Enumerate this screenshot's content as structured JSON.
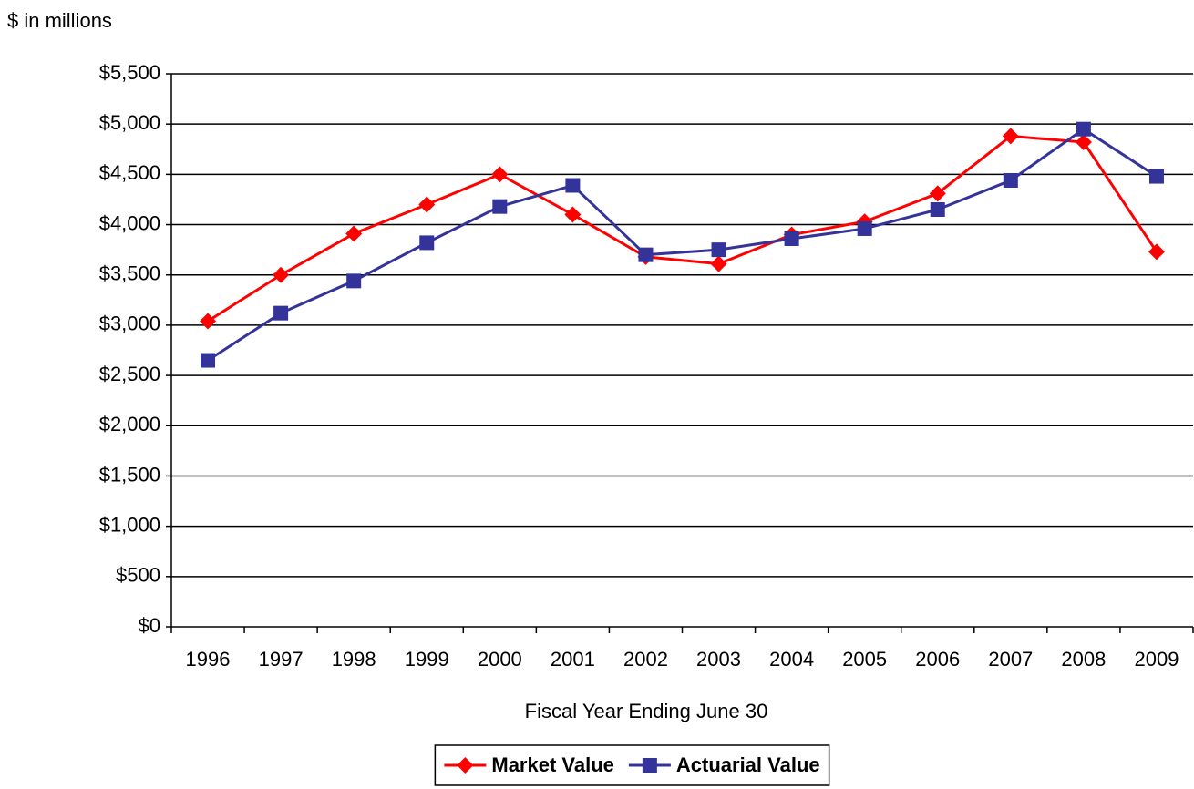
{
  "chart_data": {
    "type": "line",
    "y_label": "$ in millions",
    "x_label": "Fiscal Year Ending June 30",
    "categories": [
      "1996",
      "1997",
      "1998",
      "1999",
      "2000",
      "2001",
      "2002",
      "2003",
      "2004",
      "2005",
      "2006",
      "2007",
      "2008",
      "2009"
    ],
    "series": [
      {
        "name": "Market Value",
        "color": "#ff0000",
        "marker": "diamond",
        "values": [
          3040,
          3500,
          3910,
          4200,
          4500,
          4100,
          3680,
          3610,
          3900,
          4030,
          4310,
          4880,
          4820,
          3730
        ]
      },
      {
        "name": "Actuarial Value",
        "color": "#333399",
        "marker": "square",
        "values": [
          2650,
          3120,
          3440,
          3820,
          4180,
          4390,
          3700,
          3750,
          3860,
          3960,
          4150,
          4440,
          4950,
          4480
        ]
      }
    ],
    "ylim": [
      0,
      5500
    ],
    "yticks": [
      {
        "value": 0,
        "label": "$0"
      },
      {
        "value": 500,
        "label": "$500"
      },
      {
        "value": 1000,
        "label": "$1,000"
      },
      {
        "value": 1500,
        "label": "$1,500"
      },
      {
        "value": 2000,
        "label": "$2,000"
      },
      {
        "value": 2500,
        "label": "$2,500"
      },
      {
        "value": 3000,
        "label": "$3,000"
      },
      {
        "value": 3500,
        "label": "$3,500"
      },
      {
        "value": 4000,
        "label": "$4,000"
      },
      {
        "value": 4500,
        "label": "$4,500"
      },
      {
        "value": 5000,
        "label": "$5,000"
      },
      {
        "value": 5500,
        "label": "$5,500"
      }
    ],
    "grid": true,
    "legend": "bottom"
  }
}
